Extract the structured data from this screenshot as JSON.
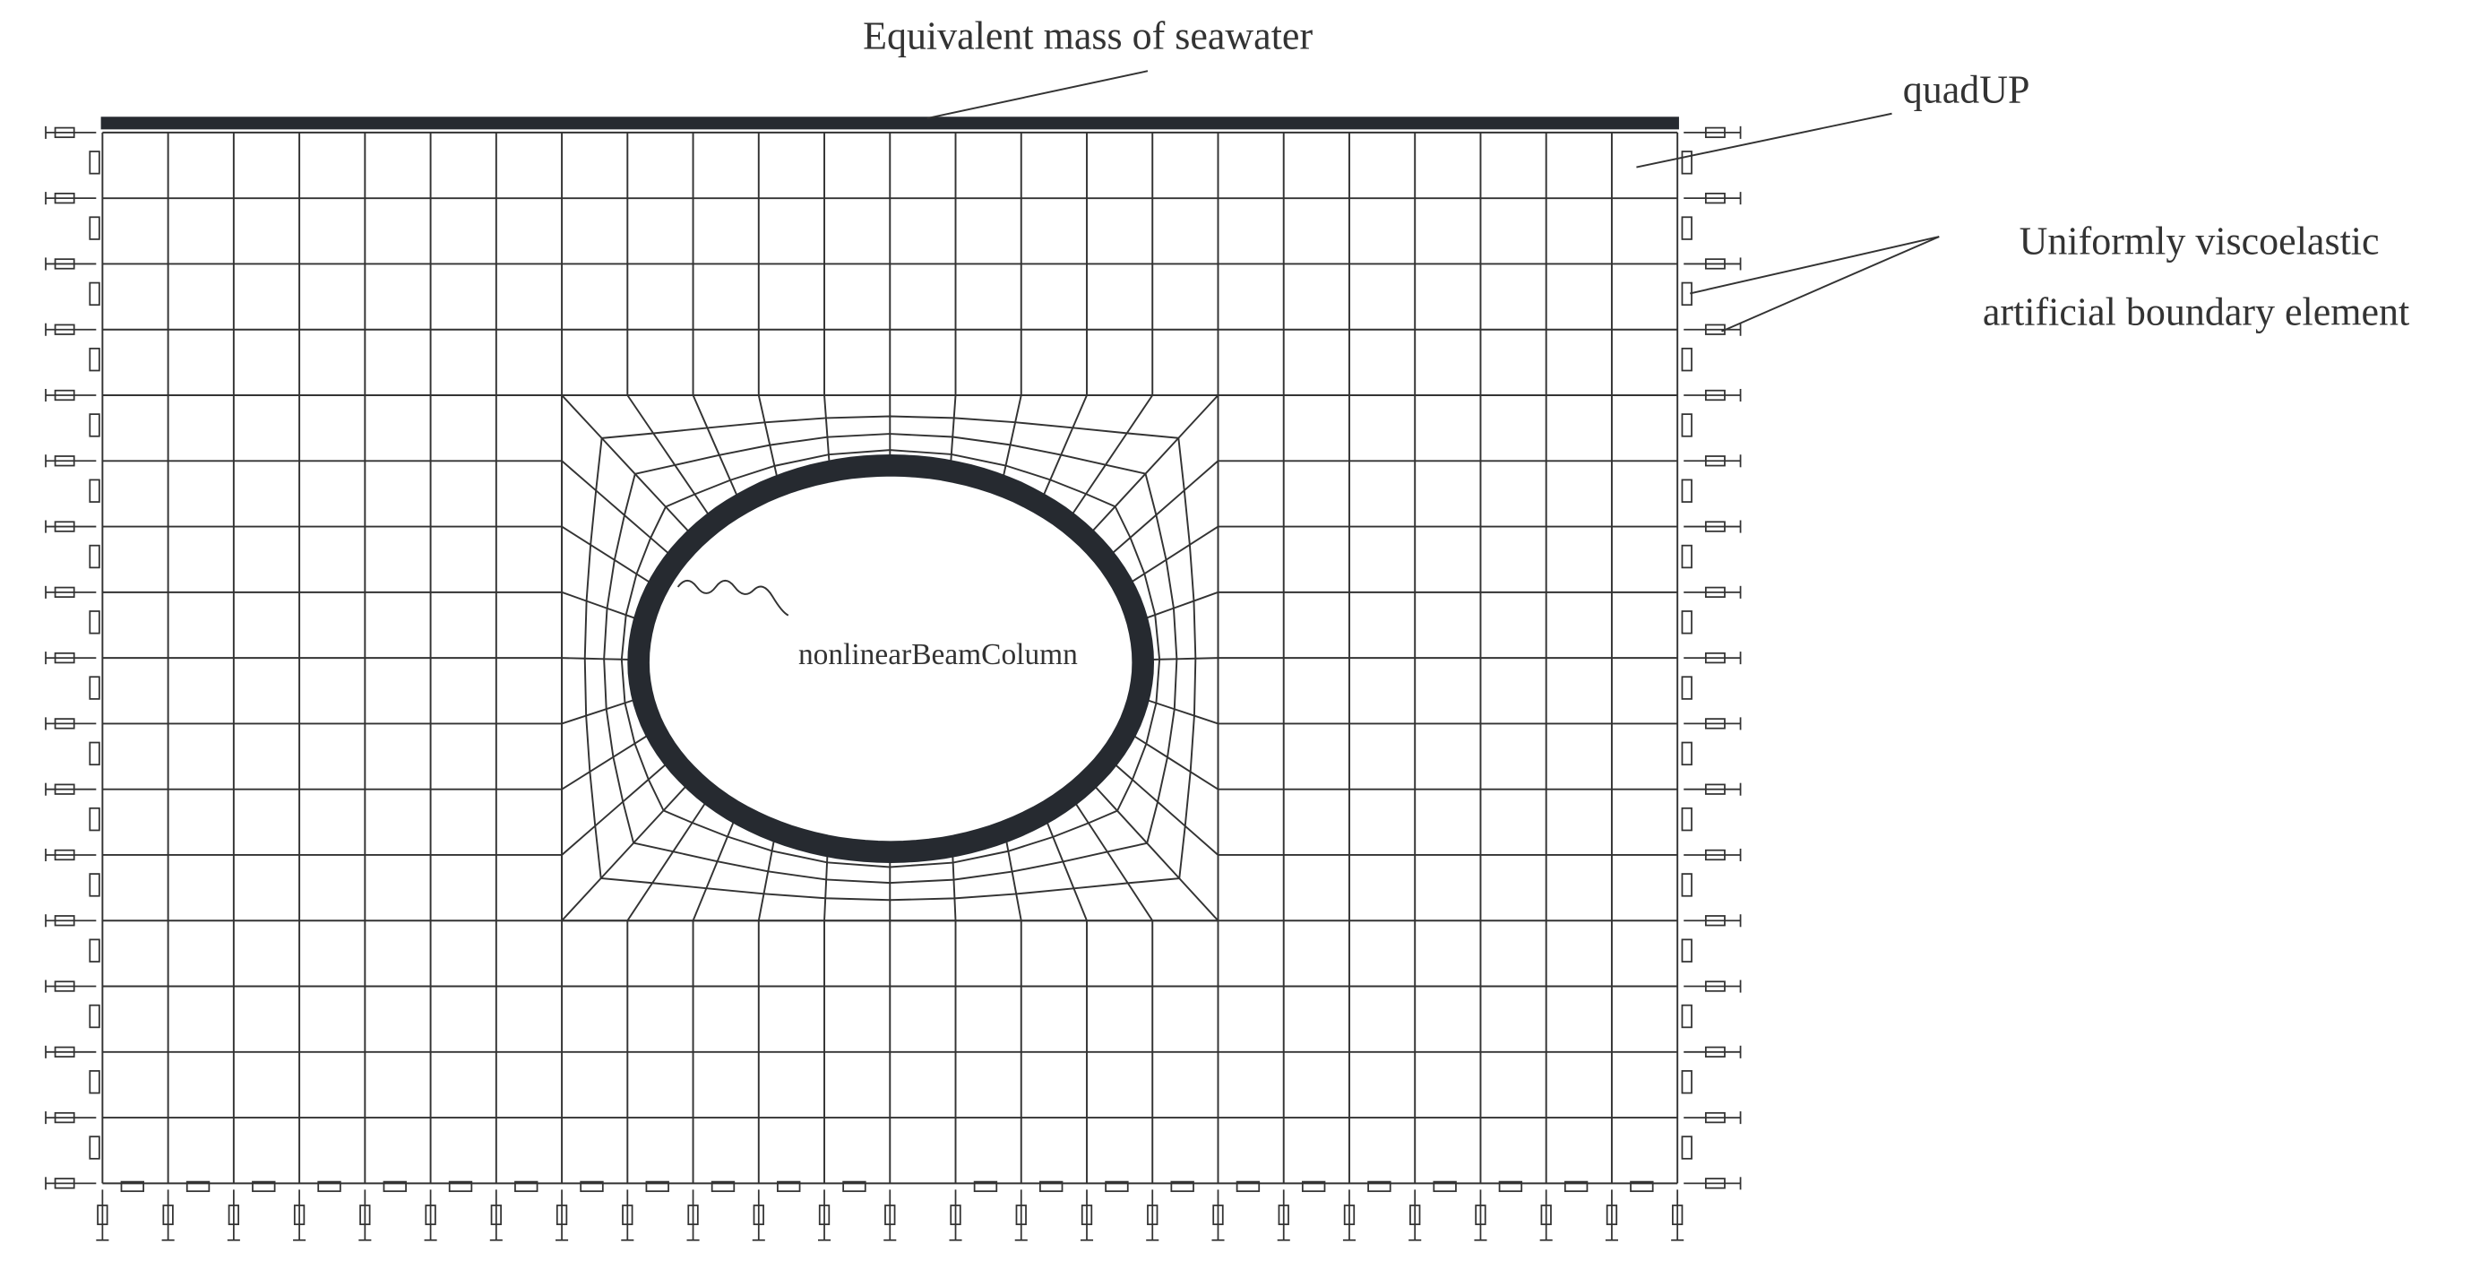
{
  "labels": {
    "seawater": "Equivalent mass of seawater",
    "quad": "quadUP",
    "boundary": [
      "Uniformly viscoelastic",
      "artificial boundary element"
    ],
    "beam": "nonlinearBeamColumn"
  }
}
